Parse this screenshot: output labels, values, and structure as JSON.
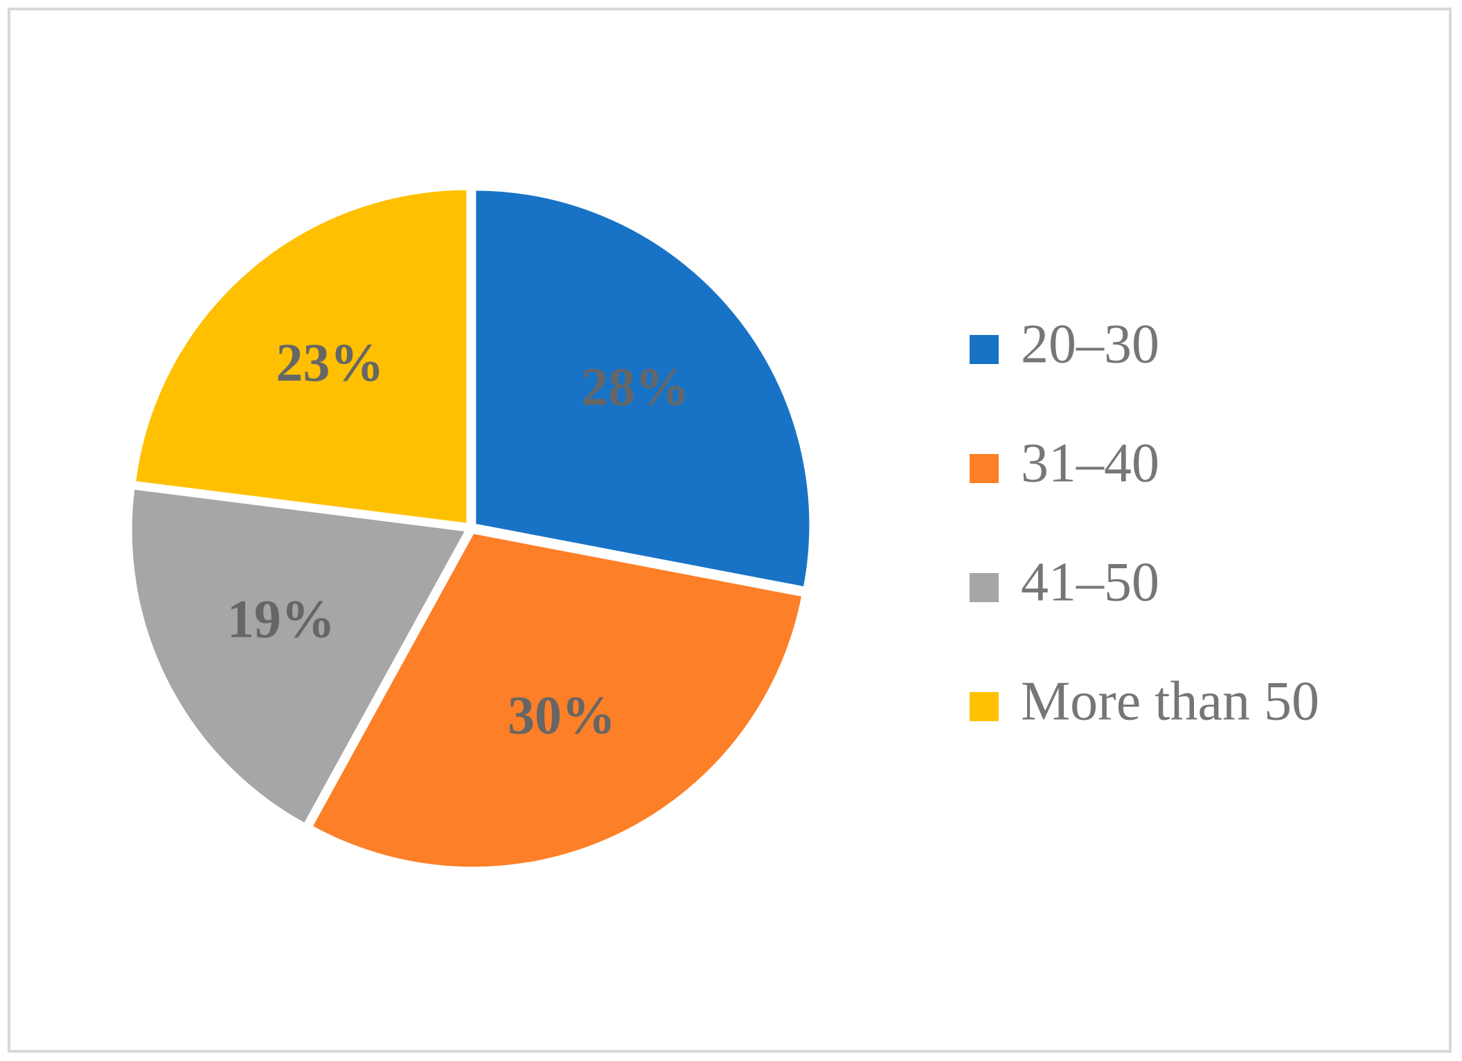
{
  "chart_data": {
    "type": "pie",
    "categories": [
      "20–30",
      "31–40",
      "41–50",
      "More than 50"
    ],
    "values": [
      28,
      30,
      19,
      23
    ],
    "value_labels": [
      "28%",
      "30%",
      "19%",
      "23%"
    ],
    "colors": [
      "#1873c6",
      "#fd7f27",
      "#a6a6a6",
      "#fec000"
    ],
    "legend": "right"
  }
}
